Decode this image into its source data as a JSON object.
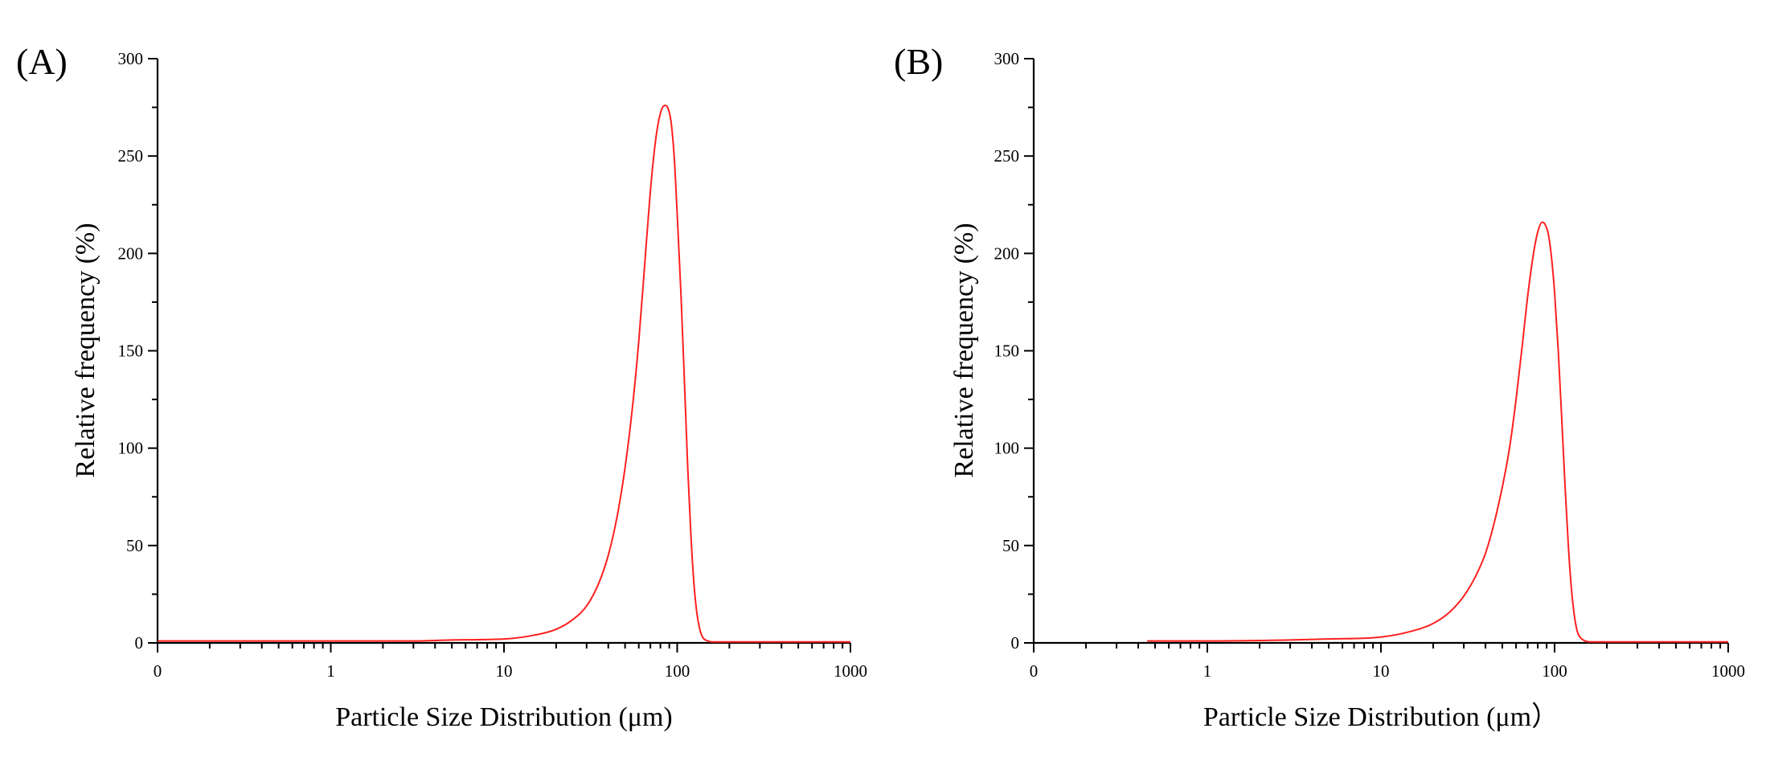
{
  "chart_data": [
    {
      "type": "line",
      "panel_label": "(A)",
      "title": "",
      "xlabel": "Particle Size Distribution (μm)",
      "ylabel": "Relative frequency (%)",
      "xscale": "log",
      "xlim": [
        0.1,
        1000
      ],
      "ylim": [
        0,
        300
      ],
      "xticks": [
        0.1,
        1,
        10,
        100,
        1000
      ],
      "xtick_labels": [
        "0",
        "1",
        "10",
        "100",
        "1000"
      ],
      "yticks": [
        0,
        50,
        100,
        150,
        200,
        250,
        300
      ],
      "ytick_labels": [
        "0",
        "50",
        "100",
        "150",
        "200",
        "250",
        "300"
      ],
      "color": "#ff2020",
      "series": [
        {
          "name": "A",
          "x": [
            0.1,
            0.5,
            1,
            3,
            5,
            10,
            15,
            20,
            25,
            30,
            35,
            40,
            45,
            50,
            55,
            60,
            65,
            70,
            75,
            80,
            85,
            88,
            92,
            96,
            100,
            105,
            110,
            115,
            120,
            125,
            130,
            135,
            140,
            150,
            160,
            180,
            200,
            300,
            500,
            1000
          ],
          "values": [
            1,
            1,
            1,
            1,
            1.5,
            2,
            4,
            7,
            12,
            19,
            30,
            45,
            65,
            90,
            120,
            155,
            195,
            232,
            258,
            272,
            276,
            275,
            268,
            250,
            220,
            180,
            135,
            90,
            55,
            30,
            15,
            7,
            3,
            1,
            0.5,
            0.5,
            0.5,
            0.5,
            0.5,
            0.5
          ]
        }
      ]
    },
    {
      "type": "line",
      "panel_label": "(B)",
      "title": "",
      "xlabel": "Particle Size Distribution (μm）",
      "ylabel": "Relative frequency (%)",
      "xscale": "log",
      "xlim": [
        0.1,
        1000
      ],
      "ylim": [
        0,
        300
      ],
      "xticks": [
        0.1,
        1,
        10,
        100,
        1000
      ],
      "xtick_labels": [
        "0",
        "1",
        "10",
        "100",
        "1000"
      ],
      "yticks": [
        0,
        50,
        100,
        150,
        200,
        250,
        300
      ],
      "ytick_labels": [
        "0",
        "50",
        "100",
        "150",
        "200",
        "250",
        "300"
      ],
      "color": "#ff2020",
      "series": [
        {
          "name": "B",
          "x": [
            0.45,
            1,
            3,
            5,
            10,
            15,
            20,
            25,
            30,
            35,
            40,
            45,
            50,
            55,
            60,
            65,
            70,
            75,
            80,
            85,
            88,
            92,
            96,
            100,
            105,
            110,
            115,
            120,
            125,
            130,
            135,
            140,
            150,
            160,
            180,
            200,
            300,
            500,
            1000
          ],
          "values": [
            1,
            1,
            1.5,
            2,
            3,
            6,
            10,
            16,
            24,
            34,
            46,
            62,
            80,
            100,
            125,
            152,
            178,
            198,
            211,
            216,
            215,
            210,
            198,
            180,
            150,
            115,
            80,
            50,
            28,
            14,
            6,
            3,
            1,
            0.5,
            0.5,
            0.5,
            0.5,
            0.5,
            0.5
          ]
        }
      ]
    }
  ]
}
